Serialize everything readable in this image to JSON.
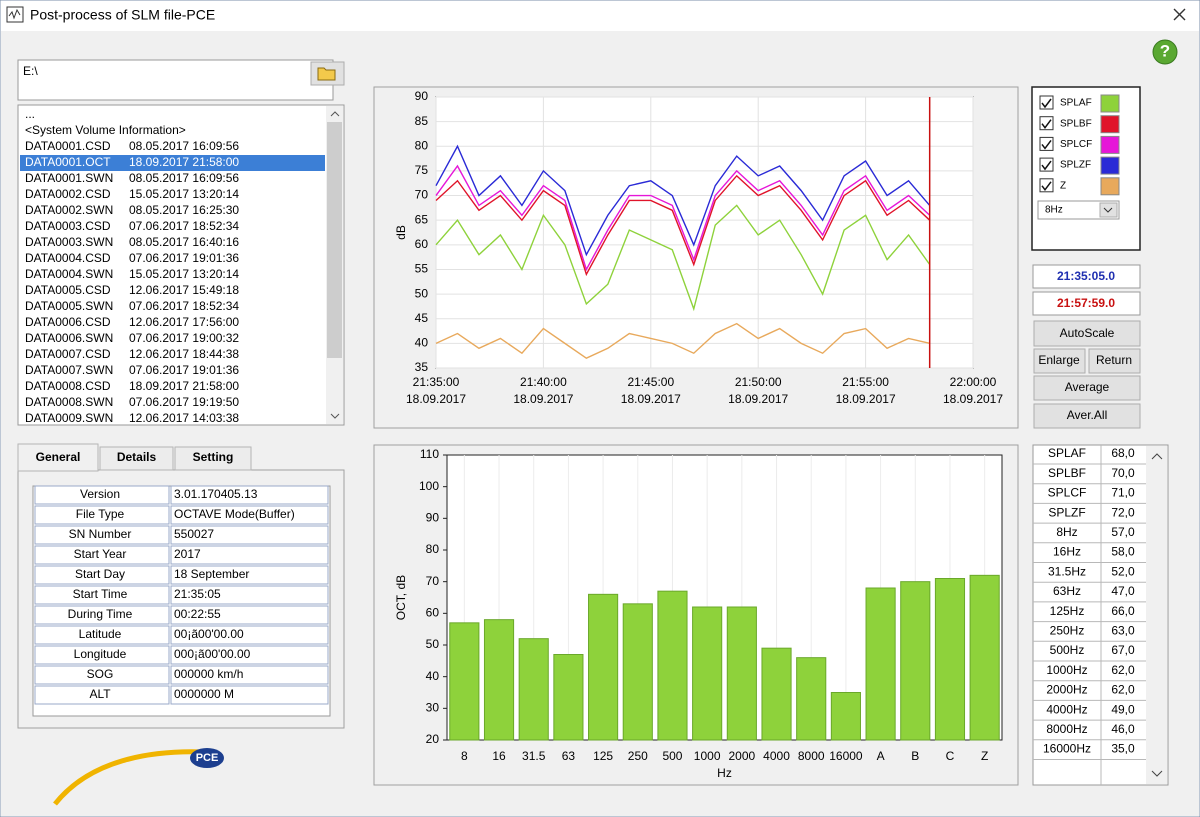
{
  "window": {
    "title": "Post-process of SLM file-PCE",
    "help": "?"
  },
  "path": "E:\\",
  "files": [
    {
      "name": "..."
    },
    {
      "name": "<System Volume Information>"
    },
    {
      "name": "DATA0001.CSD",
      "date": "08.05.2017 16:09:56"
    },
    {
      "name": "DATA0001.OCT",
      "date": "18.09.2017 21:58:00"
    },
    {
      "name": "DATA0001.SWN",
      "date": "08.05.2017 16:09:56"
    },
    {
      "name": "DATA0002.CSD",
      "date": "15.05.2017 13:20:14"
    },
    {
      "name": "DATA0002.SWN",
      "date": "08.05.2017 16:25:30"
    },
    {
      "name": "DATA0003.CSD",
      "date": "07.06.2017 18:52:34"
    },
    {
      "name": "DATA0003.SWN",
      "date": "08.05.2017 16:40:16"
    },
    {
      "name": "DATA0004.CSD",
      "date": "07.06.2017 19:01:36"
    },
    {
      "name": "DATA0004.SWN",
      "date": "15.05.2017 13:20:14"
    },
    {
      "name": "DATA0005.CSD",
      "date": "12.06.2017 15:49:18"
    },
    {
      "name": "DATA0005.SWN",
      "date": "07.06.2017 18:52:34"
    },
    {
      "name": "DATA0006.CSD",
      "date": "12.06.2017 17:56:00"
    },
    {
      "name": "DATA0006.SWN",
      "date": "07.06.2017 19:00:32"
    },
    {
      "name": "DATA0007.CSD",
      "date": "12.06.2017 18:44:38"
    },
    {
      "name": "DATA0007.SWN",
      "date": "07.06.2017 19:01:36"
    },
    {
      "name": "DATA0008.CSD",
      "date": "18.09.2017 21:58:00"
    },
    {
      "name": "DATA0008.SWN",
      "date": "07.06.2017 19:19:50"
    },
    {
      "name": "DATA0009.SWN",
      "date": "12.06.2017 14:03:38"
    }
  ],
  "selected_file": 3,
  "tabs": [
    "General",
    "Details",
    "Setting"
  ],
  "properties": [
    [
      "Version",
      "3.01.170405.13"
    ],
    [
      "File Type",
      "OCTAVE Mode(Buffer)"
    ],
    [
      "SN Number",
      "550027"
    ],
    [
      "Start Year",
      "2017"
    ],
    [
      "Start Day",
      "18 September"
    ],
    [
      "Start Time",
      "21:35:05"
    ],
    [
      "During Time",
      "00:22:55"
    ],
    [
      "Latitude",
      "00¡ã00'00.00"
    ],
    [
      "Longitude",
      "000¡ã00'00.00"
    ],
    [
      "SOG",
      "000000 km/h"
    ],
    [
      "ALT",
      "0000000 M"
    ]
  ],
  "logo": "PCE",
  "band": "8Hz",
  "times": {
    "start": "21:35:05.0",
    "end": "21:57:59.0"
  },
  "buttons": {
    "autoscale": "AutoScale",
    "enlarge": "Enlarge",
    "return": "Return",
    "average": "Average",
    "aver_all": "Aver.All"
  },
  "level_table": [
    [
      "SPLAF",
      "68,0"
    ],
    [
      "SPLBF",
      "70,0"
    ],
    [
      "SPLCF",
      "71,0"
    ],
    [
      "SPLZF",
      "72,0"
    ],
    [
      "8Hz",
      "57,0"
    ],
    [
      "16Hz",
      "58,0"
    ],
    [
      "31.5Hz",
      "52,0"
    ],
    [
      "63Hz",
      "47,0"
    ],
    [
      "125Hz",
      "66,0"
    ],
    [
      "250Hz",
      "63,0"
    ],
    [
      "500Hz",
      "67,0"
    ],
    [
      "1000Hz",
      "62,0"
    ],
    [
      "2000Hz",
      "62,0"
    ],
    [
      "4000Hz",
      "49,0"
    ],
    [
      "8000Hz",
      "46,0"
    ],
    [
      "16000Hz",
      "35,0"
    ]
  ],
  "chart_data": [
    {
      "type": "line",
      "y_label": "dB",
      "x": [
        "21:35:00",
        "21:36:00",
        "21:37:00",
        "21:38:00",
        "21:39:00",
        "21:40:00",
        "21:41:00",
        "21:42:00",
        "21:43:00",
        "21:44:00",
        "21:45:00",
        "21:46:00",
        "21:47:00",
        "21:48:00",
        "21:49:00",
        "21:50:00",
        "21:51:00",
        "21:52:00",
        "21:53:00",
        "21:54:00",
        "21:55:00",
        "21:56:00",
        "21:57:00",
        "21:57:59"
      ],
      "xlim": [
        "21:35:00",
        "22:00:00"
      ],
      "xticks": [
        {
          "time": "21:35:00",
          "date": "18.09.2017"
        },
        {
          "time": "21:40:00",
          "date": "18.09.2017"
        },
        {
          "time": "21:45:00",
          "date": "18.09.2017"
        },
        {
          "time": "21:50:00",
          "date": "18.09.2017"
        },
        {
          "time": "21:55:00",
          "date": "18.09.2017"
        },
        {
          "time": "22:00:00",
          "date": "18.09.2017"
        }
      ],
      "ylim": [
        35,
        90
      ],
      "yticks": [
        35,
        40,
        45,
        50,
        55,
        60,
        65,
        70,
        75,
        80,
        85,
        90
      ],
      "grid": true,
      "series": [
        {
          "name": "SPLAF",
          "color": "#8ed23b",
          "values": [
            60,
            65,
            58,
            62,
            55,
            66,
            60,
            48,
            52,
            63,
            61,
            59,
            47,
            64,
            68,
            62,
            65,
            58,
            50,
            63,
            66,
            57,
            62,
            56
          ]
        },
        {
          "name": "SPLBF",
          "color": "#e0142a",
          "values": [
            69,
            73,
            67,
            70,
            65,
            71,
            68,
            54,
            62,
            69,
            69,
            67,
            56,
            69,
            74,
            70,
            72,
            67,
            61,
            70,
            73,
            66,
            69,
            65
          ]
        },
        {
          "name": "SPLCF",
          "color": "#e616d8",
          "values": [
            70,
            76,
            68,
            71,
            66,
            72,
            69,
            55,
            63,
            70,
            70,
            68,
            57,
            70,
            75,
            71,
            73,
            68,
            62,
            71,
            74,
            67,
            70,
            66
          ]
        },
        {
          "name": "SPLZF",
          "color": "#2a2ad6",
          "values": [
            72,
            80,
            70,
            74,
            68,
            75,
            71,
            58,
            66,
            72,
            73,
            70,
            60,
            72,
            78,
            74,
            76,
            71,
            65,
            74,
            77,
            70,
            73,
            68
          ]
        },
        {
          "name": "Z",
          "color": "#e8a95c",
          "values": [
            40,
            42,
            39,
            41,
            38,
            43,
            40,
            37,
            39,
            42,
            41,
            40,
            38,
            42,
            44,
            41,
            43,
            40,
            38,
            42,
            43,
            39,
            41,
            40
          ]
        }
      ]
    },
    {
      "type": "bar",
      "x_label": "Hz",
      "y_label": "OCT, dB",
      "color": "#8ed23b",
      "categories": [
        "8",
        "16",
        "31.5",
        "63",
        "125",
        "250",
        "500",
        "1000",
        "2000",
        "4000",
        "8000",
        "16000",
        "A",
        "B",
        "C",
        "Z"
      ],
      "values": [
        57,
        58,
        52,
        47,
        66,
        63,
        67,
        62,
        62,
        49,
        46,
        35,
        68,
        70,
        71,
        72
      ],
      "ylim": [
        20,
        110
      ],
      "yticks": [
        20,
        30,
        40,
        50,
        60,
        70,
        80,
        90,
        100,
        110
      ]
    }
  ]
}
